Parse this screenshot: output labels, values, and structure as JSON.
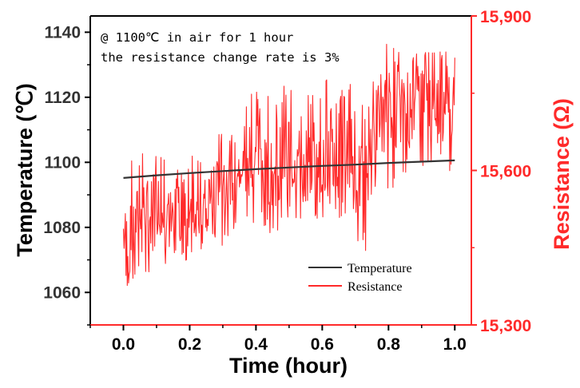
{
  "colors": {
    "temperature": "#333333",
    "resistance": "#ff2a2a",
    "axis_left": "#000000",
    "axis_right": "#ff2a2a"
  },
  "chart_data": {
    "type": "line",
    "title": "",
    "annotation": [
      "@ 1100℃ in air for 1 hour",
      "the resistance change rate is 3%"
    ],
    "xlabel": "Time (hour)",
    "ylabel": "Temperature (℃)",
    "y2label": "Resistance (Ω)",
    "xlim": [
      -0.1,
      1.05
    ],
    "ylim": [
      1050,
      1145
    ],
    "y2lim": [
      15300,
      15900
    ],
    "x_ticks": [
      "0.0",
      "0.2",
      "0.4",
      "0.6",
      "0.8",
      "1.0"
    ],
    "y_ticks": [
      "1060",
      "1080",
      "1100",
      "1120",
      "1140"
    ],
    "y2_ticks": [
      "15,300",
      "15,600",
      "15,900"
    ],
    "legend_position": "bottom-right",
    "grid": false,
    "series": [
      {
        "name": "Temperature",
        "axis": "left",
        "x": [
          0.0,
          0.1,
          0.2,
          0.3,
          0.4,
          0.5,
          0.6,
          0.7,
          0.8,
          0.9,
          1.0
        ],
        "values": [
          1095.2,
          1096.0,
          1096.7,
          1097.3,
          1097.9,
          1098.4,
          1098.9,
          1099.3,
          1099.8,
          1100.2,
          1100.6
        ]
      },
      {
        "name": "Resistance",
        "axis": "right",
        "x": [
          0.0,
          0.025,
          0.05,
          0.075,
          0.1,
          0.125,
          0.15,
          0.175,
          0.2,
          0.225,
          0.25,
          0.275,
          0.3,
          0.325,
          0.35,
          0.375,
          0.4,
          0.425,
          0.45,
          0.475,
          0.5,
          0.525,
          0.55,
          0.575,
          0.6,
          0.625,
          0.65,
          0.675,
          0.7,
          0.725,
          0.75,
          0.775,
          0.8,
          0.825,
          0.85,
          0.875,
          0.9,
          0.925,
          0.95,
          0.975,
          1.0
        ],
        "values": [
          15480,
          15450,
          15540,
          15510,
          15560,
          15500,
          15530,
          15510,
          15500,
          15520,
          15510,
          15550,
          15610,
          15590,
          15620,
          15580,
          15610,
          15600,
          15590,
          15620,
          15600,
          15630,
          15590,
          15620,
          15600,
          15630,
          15610,
          15640,
          15600,
          15560,
          15680,
          15700,
          15690,
          15720,
          15700,
          15710,
          15720,
          15740,
          15730,
          15760,
          15700
        ],
        "range_band": {
          "x": [
            0.0,
            0.05,
            0.1,
            0.15,
            0.2,
            0.25,
            0.3,
            0.35,
            0.4,
            0.45,
            0.5,
            0.55,
            0.6,
            0.65,
            0.7,
            0.72,
            0.74,
            0.75,
            0.8,
            0.85,
            0.9,
            0.95,
            1.0
          ],
          "low": [
            15370,
            15380,
            15420,
            15410,
            15420,
            15440,
            15450,
            15500,
            15470,
            15480,
            15490,
            15500,
            15510,
            15500,
            15490,
            15390,
            15450,
            15560,
            15560,
            15580,
            15600,
            15620,
            15590
          ],
          "high": [
            15620,
            15660,
            15640,
            15620,
            15650,
            15600,
            15720,
            15740,
            15760,
            15750,
            15770,
            15740,
            15780,
            15790,
            15760,
            15740,
            15720,
            15820,
            15850,
            15820,
            15840,
            15850,
            15820
          ]
        }
      }
    ]
  }
}
